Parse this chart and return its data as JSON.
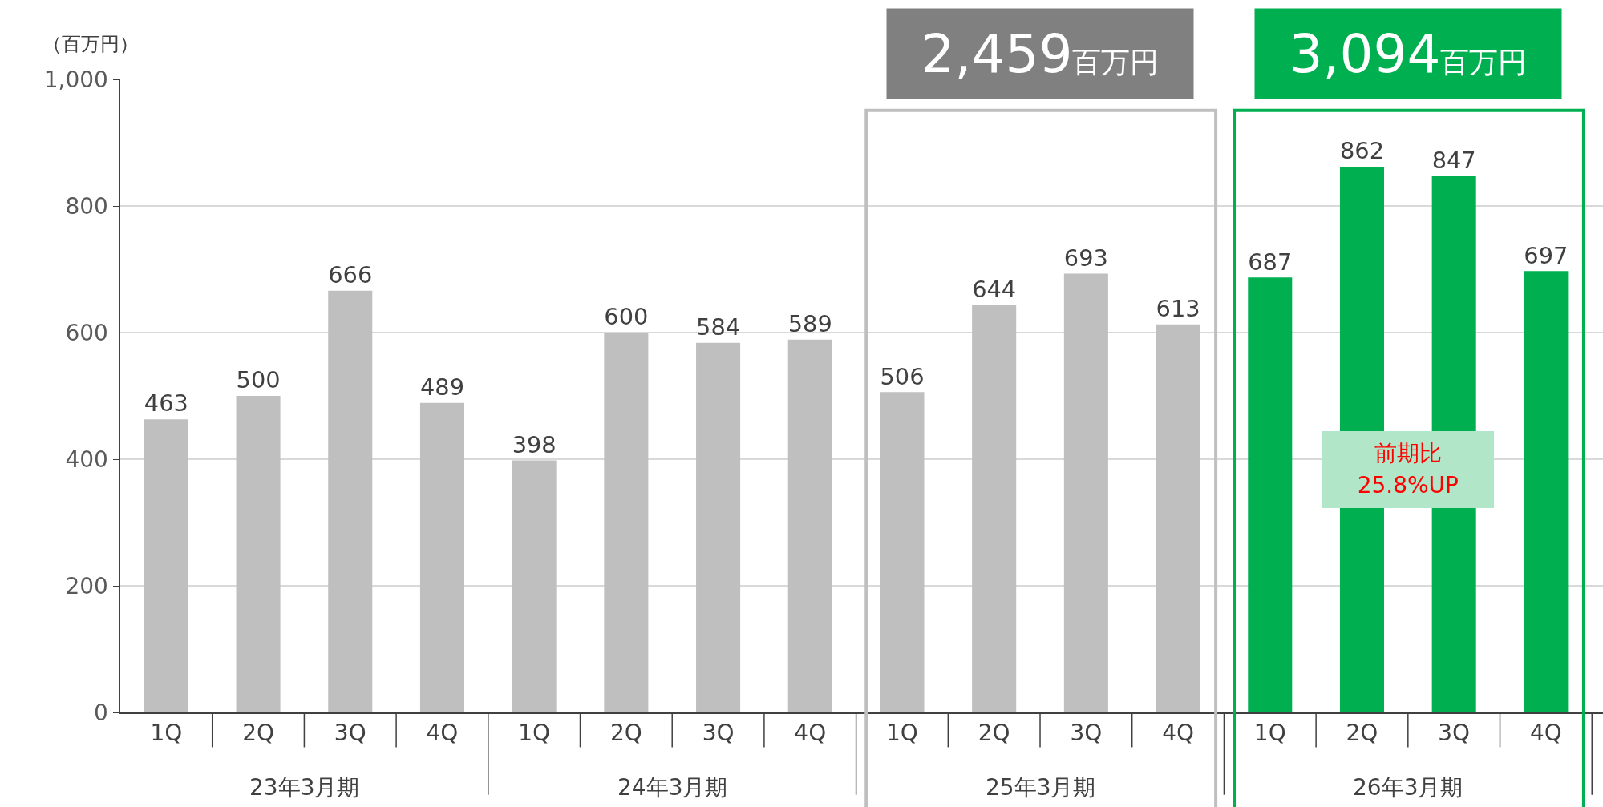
{
  "chart_data": {
    "type": "bar",
    "ylabel": "（百万円）",
    "categories": [
      "1Q",
      "2Q",
      "3Q",
      "4Q",
      "1Q",
      "2Q",
      "3Q",
      "4Q",
      "1Q",
      "2Q",
      "3Q",
      "4Q",
      "1Q",
      "2Q",
      "3Q",
      "4Q"
    ],
    "values": [
      463,
      500,
      666,
      489,
      398,
      600,
      584,
      589,
      506,
      644,
      693,
      613,
      687,
      862,
      847,
      697
    ],
    "colors": [
      "#bfbfbf",
      "#bfbfbf",
      "#bfbfbf",
      "#bfbfbf",
      "#bfbfbf",
      "#bfbfbf",
      "#bfbfbf",
      "#bfbfbf",
      "#bfbfbf",
      "#bfbfbf",
      "#bfbfbf",
      "#bfbfbf",
      "#00b050",
      "#00b050",
      "#00b050",
      "#00b050"
    ],
    "ylim": [
      0,
      1000
    ],
    "yticks": [
      0,
      200,
      400,
      600,
      800,
      {
        "value": 1000,
        "label": "1,000"
      }
    ],
    "grid": "y",
    "legend": false,
    "data_labels": true,
    "annotations": [
      "23年3月期",
      "24年3月期",
      "25年3月期",
      "26年3月期",
      "2,459百万円",
      "3,094百万円",
      "前期比\n25.8%UP"
    ]
  }
}
